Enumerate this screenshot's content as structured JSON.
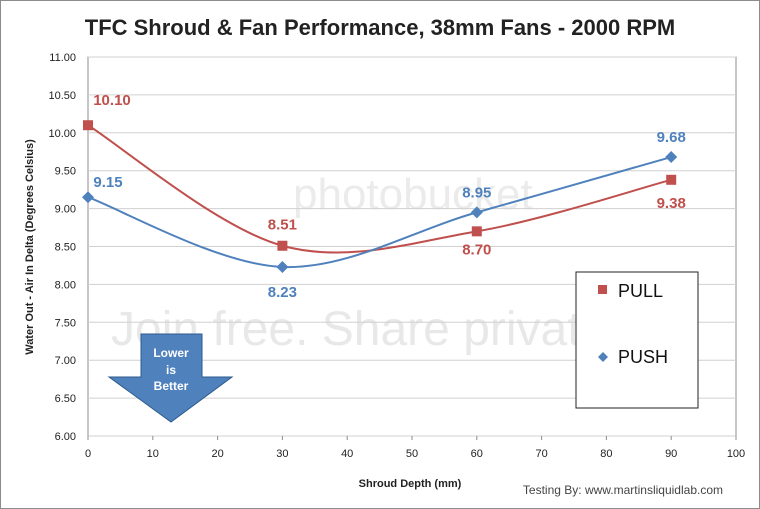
{
  "chart_data": {
    "type": "line",
    "title": "TFC Shroud & Fan Performance, 38mm Fans - 2000 RPM",
    "xlabel": "Shroud Depth (mm)",
    "ylabel": "Water Out - Air In Delta (Degrees Celsius)",
    "xlim": [
      0,
      100
    ],
    "ylim": [
      6.0,
      11.0
    ],
    "x_ticks": [
      "0",
      "10",
      "20",
      "30",
      "40",
      "50",
      "60",
      "70",
      "80",
      "90",
      "100"
    ],
    "y_ticks": [
      "6.00",
      "6.50",
      "7.00",
      "7.50",
      "8.00",
      "8.50",
      "9.00",
      "9.50",
      "10.00",
      "10.50",
      "11.00"
    ],
    "grid": true,
    "legend_position": "right",
    "series": [
      {
        "name": "PULL",
        "color": "#c0504d",
        "marker": "square",
        "x": [
          0,
          30,
          60,
          90
        ],
        "values": [
          10.1,
          8.51,
          8.7,
          9.38
        ],
        "labels": [
          "10.10",
          "8.51",
          "8.70",
          "9.38"
        ]
      },
      {
        "name": "PUSH",
        "color": "#4f81bd",
        "marker": "diamond",
        "x": [
          0,
          30,
          60,
          90
        ],
        "values": [
          9.15,
          8.23,
          8.95,
          9.68
        ],
        "labels": [
          "9.15",
          "8.23",
          "8.95",
          "9.68"
        ]
      }
    ],
    "annotation": {
      "arrow_text": [
        "Lower",
        "is",
        "Better"
      ],
      "arrow_color": "#4f81bd"
    },
    "credit": "Testing By: www.martinsliquidlab.com"
  },
  "watermark": {
    "top": "photobucket",
    "middle": "Join free. Share privately."
  }
}
